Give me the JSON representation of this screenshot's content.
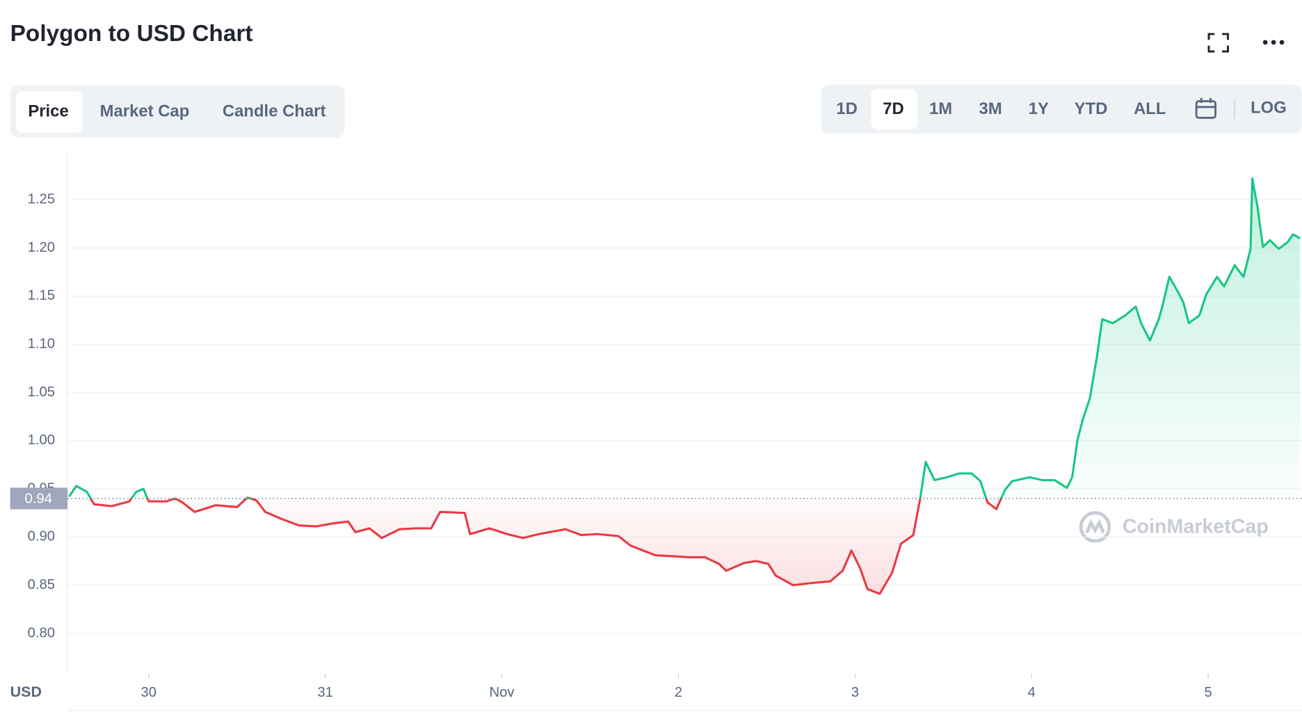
{
  "header": {
    "title": "Polygon to USD Chart"
  },
  "tabs": [
    "Price",
    "Market Cap",
    "Candle Chart"
  ],
  "ranges": [
    "1D",
    "7D",
    "1M",
    "3M",
    "1Y",
    "YTD",
    "ALL"
  ],
  "scale_toggle": "LOG",
  "watermark": "CoinMarketCap",
  "chart_data": {
    "type": "line",
    "y_label": "USD",
    "baseline": 0.94,
    "up_color": "#16c784",
    "down_color": "#ea3943",
    "grid": true,
    "xlim": [
      -0.46,
      6.53
    ],
    "xticks": [
      {
        "value": 0,
        "label": "30"
      },
      {
        "value": 1,
        "label": "31"
      },
      {
        "value": 2,
        "label": "Nov"
      },
      {
        "value": 3,
        "label": "2"
      },
      {
        "value": 4,
        "label": "3"
      },
      {
        "value": 5,
        "label": "4"
      },
      {
        "value": 6,
        "label": "5"
      }
    ],
    "ylim": [
      0.758,
      1.298
    ],
    "yticks": [
      {
        "value": 0.8,
        "label": "0.80"
      },
      0.85,
      {
        "value": 0.9,
        "label": "0.90"
      },
      0.95,
      {
        "value": 1.0,
        "label": "1.00"
      },
      1.05,
      {
        "value": 1.1,
        "label": "1.10"
      },
      1.15,
      {
        "value": 1.2,
        "label": "1.20"
      },
      1.25
    ],
    "x": [
      -0.45,
      -0.41,
      -0.35,
      -0.31,
      -0.21,
      -0.11,
      -0.07,
      -0.03,
      0.0,
      0.1,
      0.15,
      0.19,
      0.26,
      0.38,
      0.5,
      0.56,
      0.61,
      0.66,
      0.75,
      0.85,
      0.95,
      1.04,
      1.13,
      1.17,
      1.25,
      1.32,
      1.42,
      1.51,
      1.6,
      1.65,
      1.79,
      1.82,
      1.93,
      2.03,
      2.12,
      2.21,
      2.36,
      2.45,
      2.54,
      2.66,
      2.73,
      2.8,
      2.87,
      2.97,
      3.06,
      3.15,
      3.23,
      3.27,
      3.37,
      3.44,
      3.51,
      3.55,
      3.65,
      3.74,
      3.86,
      3.93,
      3.98,
      4.03,
      4.07,
      4.14,
      4.21,
      4.26,
      4.33,
      4.37,
      4.4,
      4.45,
      4.52,
      4.59,
      4.66,
      4.71,
      4.75,
      4.8,
      4.85,
      4.89,
      4.99,
      5.06,
      5.13,
      5.2,
      5.23,
      5.26,
      5.29,
      5.33,
      5.37,
      5.4,
      5.46,
      5.53,
      5.59,
      5.62,
      5.67,
      5.72,
      5.74,
      5.78,
      5.83,
      5.86,
      5.89,
      5.95,
      5.99,
      6.05,
      6.09,
      6.15,
      6.2,
      6.24,
      6.25,
      6.28,
      6.31,
      6.35,
      6.4,
      6.45,
      6.48,
      6.52
    ],
    "values": [
      0.942,
      0.953,
      0.947,
      0.934,
      0.932,
      0.937,
      0.947,
      0.95,
      0.937,
      0.937,
      0.94,
      0.936,
      0.926,
      0.933,
      0.931,
      0.941,
      0.938,
      0.926,
      0.919,
      0.912,
      0.911,
      0.914,
      0.916,
      0.905,
      0.909,
      0.899,
      0.908,
      0.909,
      0.909,
      0.926,
      0.925,
      0.903,
      0.909,
      0.903,
      0.899,
      0.903,
      0.908,
      0.902,
      0.903,
      0.901,
      0.891,
      0.886,
      0.881,
      0.88,
      0.879,
      0.879,
      0.872,
      0.865,
      0.873,
      0.875,
      0.872,
      0.86,
      0.85,
      0.852,
      0.854,
      0.865,
      0.886,
      0.867,
      0.846,
      0.841,
      0.863,
      0.893,
      0.902,
      0.941,
      0.978,
      0.959,
      0.962,
      0.966,
      0.966,
      0.958,
      0.936,
      0.929,
      0.949,
      0.958,
      0.962,
      0.959,
      0.959,
      0.951,
      0.962,
      1.001,
      1.022,
      1.044,
      1.087,
      1.126,
      1.122,
      1.13,
      1.139,
      1.122,
      1.104,
      1.126,
      1.139,
      1.17,
      1.154,
      1.143,
      1.122,
      1.13,
      1.152,
      1.17,
      1.16,
      1.182,
      1.17,
      1.199,
      1.272,
      1.242,
      1.201,
      1.208,
      1.199,
      1.206,
      1.214,
      1.21
    ]
  }
}
